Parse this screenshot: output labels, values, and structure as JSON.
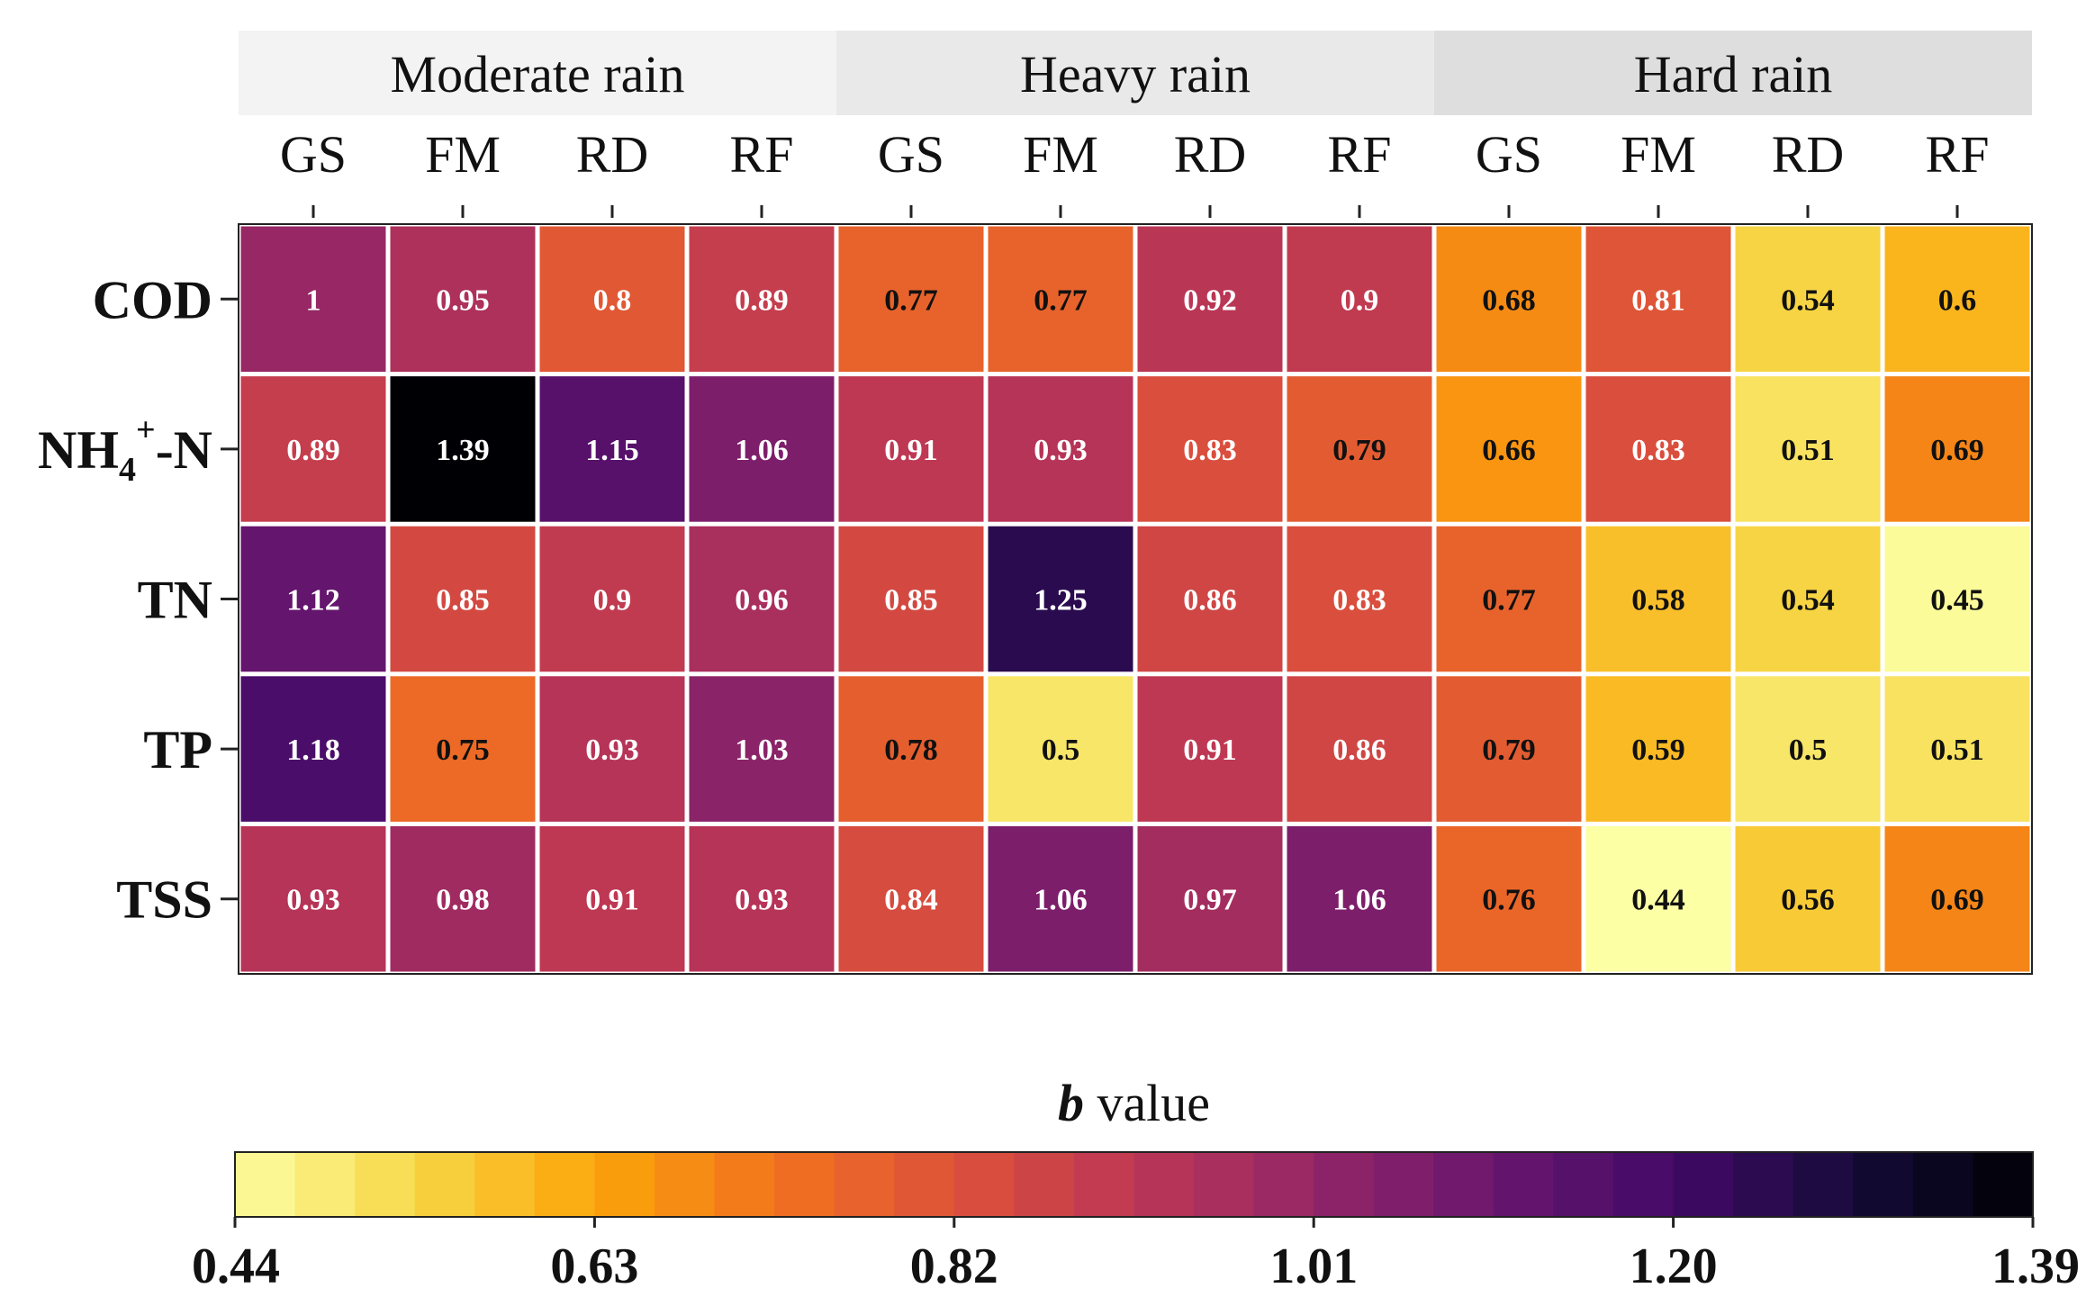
{
  "chart_data": {
    "type": "heatmap",
    "title": "",
    "groups": [
      {
        "label": "Moderate rain",
        "columns": [
          "GS",
          "FM",
          "RD",
          "RF"
        ],
        "bg": "#f3f3f3"
      },
      {
        "label": "Heavy rain",
        "columns": [
          "GS",
          "FM",
          "RD",
          "RF"
        ],
        "bg": "#e9e9e9"
      },
      {
        "label": "Hard rain",
        "columns": [
          "GS",
          "FM",
          "RD",
          "RF"
        ],
        "bg": "#dedede"
      }
    ],
    "rows": [
      {
        "main": "COD",
        "sub": "",
        "sup": "",
        "tail": ""
      },
      {
        "main": "NH",
        "sub": "4",
        "sup": "+",
        "tail": "-N"
      },
      {
        "main": "TN",
        "sub": "",
        "sup": "",
        "tail": ""
      },
      {
        "main": "TP",
        "sub": "",
        "sup": "",
        "tail": ""
      },
      {
        "main": "TSS",
        "sub": "",
        "sup": "",
        "tail": ""
      }
    ],
    "values": [
      [
        1,
        0.95,
        0.8,
        0.89,
        0.77,
        0.77,
        0.92,
        0.9,
        0.68,
        0.81,
        0.54,
        0.6
      ],
      [
        0.89,
        1.39,
        1.15,
        1.06,
        0.91,
        0.93,
        0.83,
        0.79,
        0.66,
        0.83,
        0.51,
        0.69
      ],
      [
        1.12,
        0.85,
        0.9,
        0.96,
        0.85,
        1.25,
        0.86,
        0.83,
        0.77,
        0.58,
        0.54,
        0.45
      ],
      [
        1.18,
        0.75,
        0.93,
        1.03,
        0.78,
        0.5,
        0.91,
        0.86,
        0.79,
        0.59,
        0.5,
        0.51
      ],
      [
        0.93,
        0.98,
        0.91,
        0.93,
        0.84,
        1.06,
        0.97,
        1.06,
        0.76,
        0.44,
        0.56,
        0.69
      ]
    ],
    "colorbar": {
      "label_italic": "b",
      "label_rest": " value",
      "min": 0.44,
      "max": 1.39,
      "bins": 30,
      "ticks": [
        "0.44",
        "0.63",
        "0.82",
        "1.01",
        "1.20",
        "1.39"
      ]
    },
    "colormap": "inferno_r",
    "colormap_stops": [
      "#fcffa4",
      "#f6d746",
      "#fca50a",
      "#f1731d",
      "#dd513a",
      "#bc3754",
      "#932667",
      "#6a176e",
      "#420a68",
      "#160b39",
      "#000004"
    ],
    "label_dark_threshold": 0.8
  }
}
